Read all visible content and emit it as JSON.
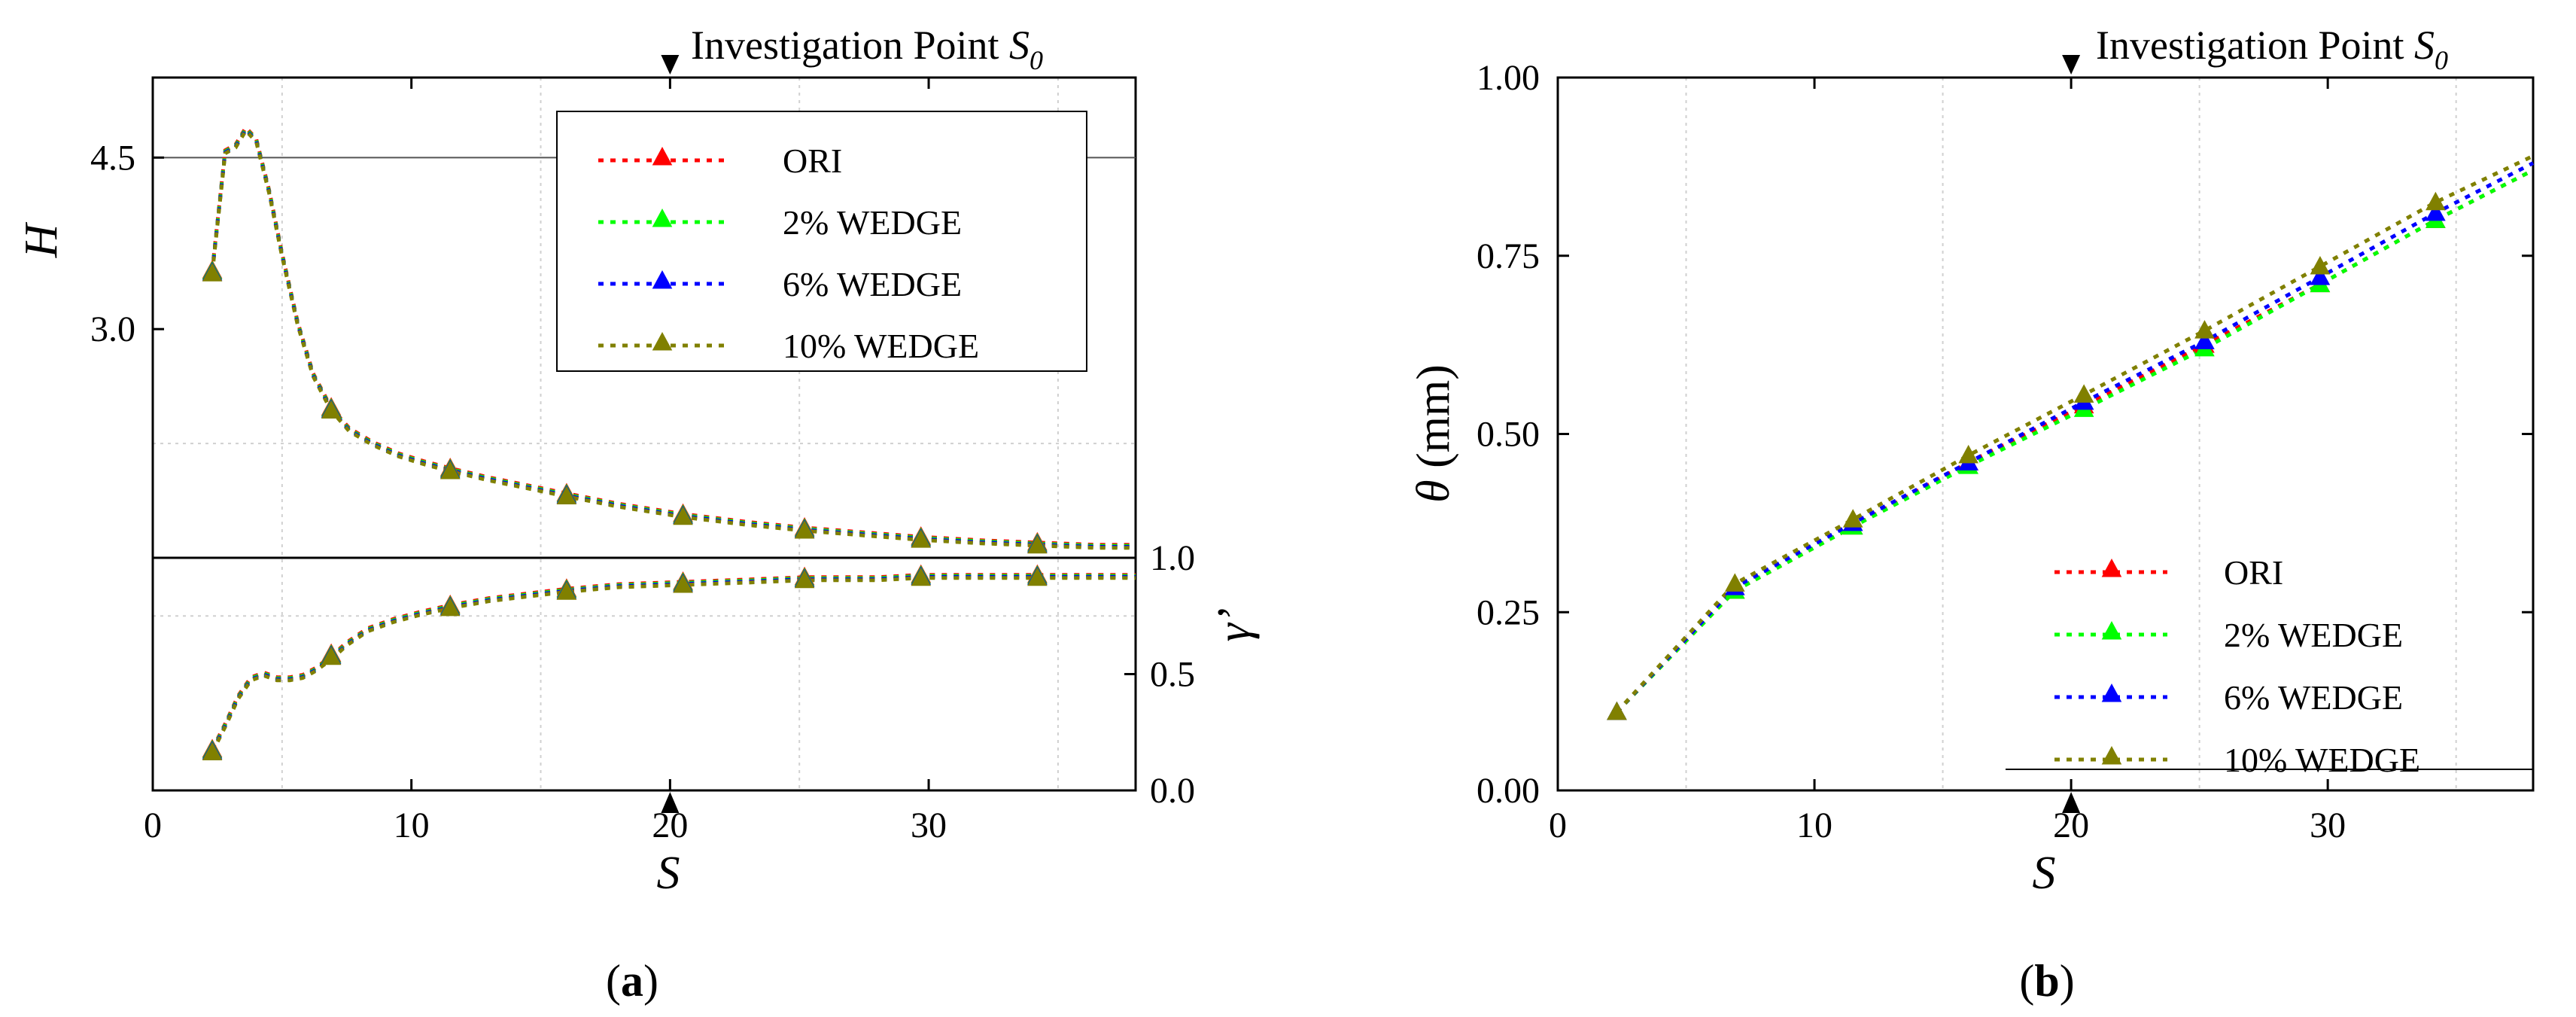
{
  "colors": {
    "ORI": "#ff0000",
    "2% WEDGE": "#00ff00",
    "6% WEDGE": "#0000ff",
    "10% WEDGE": "#808000"
  },
  "chart_data": [
    {
      "id": "a",
      "type": "line",
      "caption": {
        "open": "(",
        "letter": "a",
        "close": ")"
      },
      "annotation": {
        "text": "Investigation Point ",
        "symbol": "S",
        "subscript": "0",
        "x": 20
      },
      "xlabel": "S",
      "xlim": [
        0,
        38
      ],
      "xticks": [
        0,
        10,
        20,
        30
      ],
      "legend": {
        "placement": "top-right",
        "entries": [
          "ORI",
          "2% WEDGE",
          "6% WEDGE",
          "10% WEDGE"
        ]
      },
      "upper": {
        "ylabel": "H",
        "ylim": [
          1.0,
          5.2
        ],
        "yticks": [
          3.0,
          4.5
        ],
        "ytick_labels": [
          "3.0",
          "4.5"
        ],
        "hline": 4.5,
        "curve": {
          "x": [
            2.3,
            2.8,
            3.2,
            3.6,
            4.0,
            4.5,
            5.0,
            5.6,
            6.2,
            6.9,
            7.6,
            8.5,
            9.5,
            10.5,
            11.5,
            13.0,
            14.5,
            16.0,
            18.0,
            20.5,
            23.0,
            25.2,
            28.0,
            29.7,
            32.0,
            34.2,
            36.5,
            38.0
          ],
          "y": [
            3.5,
            4.55,
            4.6,
            4.75,
            4.65,
            4.2,
            3.65,
            3.05,
            2.6,
            2.3,
            2.12,
            2.0,
            1.9,
            1.83,
            1.77,
            1.69,
            1.62,
            1.55,
            1.46,
            1.37,
            1.3,
            1.25,
            1.2,
            1.17,
            1.14,
            1.12,
            1.1,
            1.1
          ]
        },
        "markers": [
          {
            "x": 2.3,
            "y": 3.5
          },
          {
            "x": 6.9,
            "y": 2.3
          },
          {
            "x": 11.5,
            "y": 1.77
          },
          {
            "x": 16.0,
            "y": 1.55
          },
          {
            "x": 20.5,
            "y": 1.37
          },
          {
            "x": 25.2,
            "y": 1.25
          },
          {
            "x": 29.7,
            "y": 1.17
          },
          {
            "x": 34.2,
            "y": 1.12
          }
        ]
      },
      "lower": {
        "ylabel": "γ’",
        "ylim": [
          0.0,
          1.0
        ],
        "yticks": [
          0.0,
          0.5,
          1.0
        ],
        "ytick_labels": [
          "0.0",
          "0.5",
          "1.0"
        ],
        "curve": {
          "x": [
            2.3,
            2.8,
            3.3,
            3.8,
            4.3,
            4.8,
            5.3,
            5.8,
            6.3,
            6.9,
            7.5,
            8.3,
            9.3,
            10.3,
            11.5,
            13.0,
            14.5,
            16.0,
            18.0,
            20.5,
            23.0,
            25.2,
            28.0,
            29.7,
            32.0,
            34.2,
            36.5,
            38.0
          ],
          "y": [
            0.17,
            0.28,
            0.4,
            0.48,
            0.5,
            0.48,
            0.48,
            0.49,
            0.52,
            0.57,
            0.63,
            0.69,
            0.73,
            0.76,
            0.79,
            0.82,
            0.84,
            0.86,
            0.88,
            0.89,
            0.9,
            0.91,
            0.91,
            0.92,
            0.92,
            0.92,
            0.92,
            0.92
          ]
        },
        "markers": [
          {
            "x": 2.3,
            "y": 0.17
          },
          {
            "x": 6.9,
            "y": 0.58
          },
          {
            "x": 11.5,
            "y": 0.79
          },
          {
            "x": 16.0,
            "y": 0.86
          },
          {
            "x": 20.5,
            "y": 0.89
          },
          {
            "x": 25.2,
            "y": 0.91
          },
          {
            "x": 29.7,
            "y": 0.92
          },
          {
            "x": 34.2,
            "y": 0.92
          }
        ]
      },
      "series_offsets": {
        "ORI": 0.0,
        "2% WEDGE": 0.0,
        "6% WEDGE": 0.0,
        "10% WEDGE": 0.0
      }
    },
    {
      "id": "b",
      "type": "line",
      "caption": {
        "open": "(",
        "letter": "b",
        "close": ")"
      },
      "annotation": {
        "text": "Investigation Point ",
        "symbol": "S",
        "subscript": "0",
        "x": 20
      },
      "xlabel": "S",
      "xlim": [
        0,
        38
      ],
      "xticks": [
        0,
        10,
        20,
        30
      ],
      "ylabel": {
        "symbol": "θ",
        "unit": " (mm)"
      },
      "ylim": [
        0.0,
        1.0
      ],
      "yticks": [
        0.0,
        0.25,
        0.5,
        0.75,
        1.0
      ],
      "ytick_labels": [
        "0.00",
        "0.25",
        "0.50",
        "0.75",
        "1.00"
      ],
      "grid": true,
      "legend": {
        "placement": "bottom-right",
        "entries": [
          "ORI",
          "2% WEDGE",
          "6% WEDGE",
          "10% WEDGE"
        ]
      },
      "series": [
        {
          "name": "ORI",
          "x": [
            2.3,
            6.9,
            11.5,
            16.0,
            20.5,
            25.2,
            29.7,
            34.2,
            38.0
          ],
          "y": [
            0.11,
            0.28,
            0.37,
            0.46,
            0.54,
            0.625,
            0.71,
            0.8,
            0.87
          ]
        },
        {
          "name": "2% WEDGE",
          "x": [
            2.3,
            6.9,
            11.5,
            16.0,
            20.5,
            25.2,
            29.7,
            34.2,
            38.0
          ],
          "y": [
            0.11,
            0.28,
            0.37,
            0.455,
            0.535,
            0.62,
            0.71,
            0.8,
            0.87
          ]
        },
        {
          "name": "6% WEDGE",
          "x": [
            2.3,
            6.9,
            11.5,
            16.0,
            20.5,
            25.2,
            29.7,
            34.2,
            38.0
          ],
          "y": [
            0.11,
            0.285,
            0.375,
            0.46,
            0.545,
            0.63,
            0.72,
            0.81,
            0.88
          ]
        },
        {
          "name": "10% WEDGE",
          "x": [
            2.3,
            6.9,
            11.5,
            16.0,
            20.5,
            25.2,
            29.7,
            34.2,
            38.0
          ],
          "y": [
            0.11,
            0.29,
            0.38,
            0.47,
            0.555,
            0.645,
            0.735,
            0.825,
            0.89
          ]
        }
      ]
    }
  ]
}
